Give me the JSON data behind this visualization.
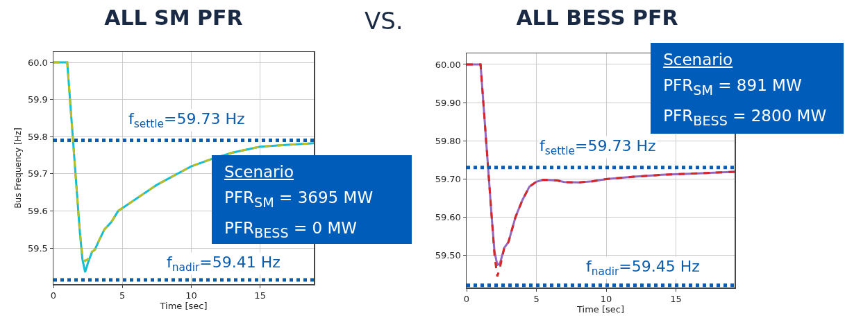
{
  "chart_data": [
    {
      "type": "line",
      "title": "ALL SM PFR",
      "xlabel": "Time [sec]",
      "ylabel": "Bus Frequency [Hz]",
      "xlim": [
        0,
        18.9
      ],
      "xticks": [
        0,
        5,
        10,
        15
      ],
      "ylim": [
        59.403,
        60.028
      ],
      "yticks": [
        {
          "value": 59.5,
          "label": "59.5"
        },
        {
          "value": 59.6,
          "label": "59.6"
        },
        {
          "value": 59.7,
          "label": "59.7"
        },
        {
          "value": 59.8,
          "label": "59.8"
        },
        {
          "value": 59.9,
          "label": "59.9"
        },
        {
          "value": 60,
          "label": "60.0"
        }
      ],
      "grid": true,
      "series": [
        {
          "color": "#17becf",
          "x": [
            0,
            1.0,
            1.3,
            1.6,
            1.9,
            2.1,
            2.3,
            2.5,
            2.8,
            3.0,
            3.3,
            3.7,
            4.2,
            4.7,
            5.5,
            6.5,
            7.5,
            8.5,
            10,
            11.5,
            13,
            15,
            17,
            18.9
          ],
          "values": [
            60.0,
            60.0,
            59.85,
            59.7,
            59.55,
            59.47,
            59.435,
            59.46,
            59.49,
            59.495,
            59.52,
            59.55,
            59.57,
            59.6,
            59.62,
            59.645,
            59.67,
            59.69,
            59.72,
            59.74,
            59.757,
            59.773,
            59.778,
            59.782
          ]
        },
        {
          "color": "#bcbd22",
          "line_style": "dashed",
          "x": [
            0,
            1.0,
            1.3,
            1.6,
            1.9,
            2.1,
            2.3,
            2.5,
            2.8,
            3.0,
            3.3,
            3.7,
            4.2,
            4.7,
            5.5,
            6.5,
            7.5,
            8.5,
            10,
            11.5,
            13,
            15,
            17,
            18.9
          ],
          "values": [
            60.0,
            60.0,
            59.85,
            59.7,
            59.55,
            59.48,
            59.465,
            59.47,
            59.49,
            59.495,
            59.52,
            59.55,
            59.57,
            59.6,
            59.62,
            59.645,
            59.67,
            59.69,
            59.72,
            59.74,
            59.757,
            59.773,
            59.778,
            59.782
          ]
        }
      ],
      "ref_lines": [
        {
          "axis": "y",
          "value": 59.79,
          "color": "#0b5cad",
          "line_style": "dotted"
        },
        {
          "axis": "y",
          "value": 59.414,
          "color": "#0b5cad",
          "line_style": "dotted"
        }
      ],
      "annotations": [
        "VS.",
        "Scenario",
        "PFR$_{SM}$ = 3695 MW",
        "PFR$_{BESS}$ = 0 MW",
        "f$_{settle}$=59.73 Hz",
        "f$_{nadir}$=59.41 Hz"
      ]
    },
    {
      "type": "line",
      "title": "ALL BESS PFR",
      "xlabel": "Time [sec]",
      "xlim": [
        0,
        19.2
      ],
      "xticks": [
        0,
        5,
        10,
        15
      ],
      "ylim": [
        59.416,
        60.029
      ],
      "yticks": [
        {
          "value": 59.5,
          "label": "59.50"
        },
        {
          "value": 59.6,
          "label": "59.60"
        },
        {
          "value": 59.7,
          "label": "59.70"
        },
        {
          "value": 59.8,
          "label": "59.80"
        },
        {
          "value": 59.9,
          "label": "59.90"
        },
        {
          "value": 60,
          "label": "60.00"
        }
      ],
      "grid": true,
      "series": [
        {
          "color": "#9467bd",
          "x": [
            0,
            1.0,
            1.2,
            1.5,
            1.8,
            2.0,
            2.2,
            2.4,
            2.7,
            3.0,
            3.5,
            4.0,
            4.5,
            5.0,
            5.5,
            6,
            6.5,
            7,
            8,
            9,
            10,
            12,
            14,
            16,
            19.2
          ],
          "values": [
            60.0,
            60.0,
            59.9,
            59.75,
            59.6,
            59.51,
            59.475,
            59.48,
            59.52,
            59.535,
            59.6,
            59.645,
            59.68,
            59.693,
            59.698,
            59.697,
            59.696,
            59.692,
            59.691,
            59.694,
            59.7,
            59.706,
            59.711,
            59.714,
            59.719
          ]
        },
        {
          "color": "#d62728",
          "line_style": "dashed",
          "x": [
            0,
            1.0,
            1.2,
            1.5,
            1.8,
            2.0,
            2.2,
            2.4,
            2.7,
            3.0,
            3.5,
            4.0,
            4.5,
            5.0,
            5.5,
            6,
            6.5,
            7,
            8,
            9,
            10,
            12,
            14,
            16,
            19.2
          ],
          "values": [
            60.0,
            60.0,
            59.9,
            59.75,
            59.6,
            59.5,
            59.445,
            59.47,
            59.52,
            59.535,
            59.6,
            59.645,
            59.68,
            59.693,
            59.698,
            59.697,
            59.696,
            59.692,
            59.691,
            59.694,
            59.7,
            59.706,
            59.711,
            59.714,
            59.719
          ]
        }
      ],
      "ref_lines": [
        {
          "axis": "y",
          "value": 59.73,
          "color": "#0b5cad",
          "line_style": "dotted"
        },
        {
          "axis": "y",
          "value": 59.422,
          "color": "#0b5cad",
          "line_style": "dotted"
        }
      ],
      "annotations": [
        "Scenario",
        "PFR$_{SM}$ = 891 MW",
        "PFR$_{BESS}$ = 2800 MW",
        "f$_{settle}$=59.73 Hz",
        "f$_{nadir}$=59.45 Hz"
      ]
    }
  ]
}
